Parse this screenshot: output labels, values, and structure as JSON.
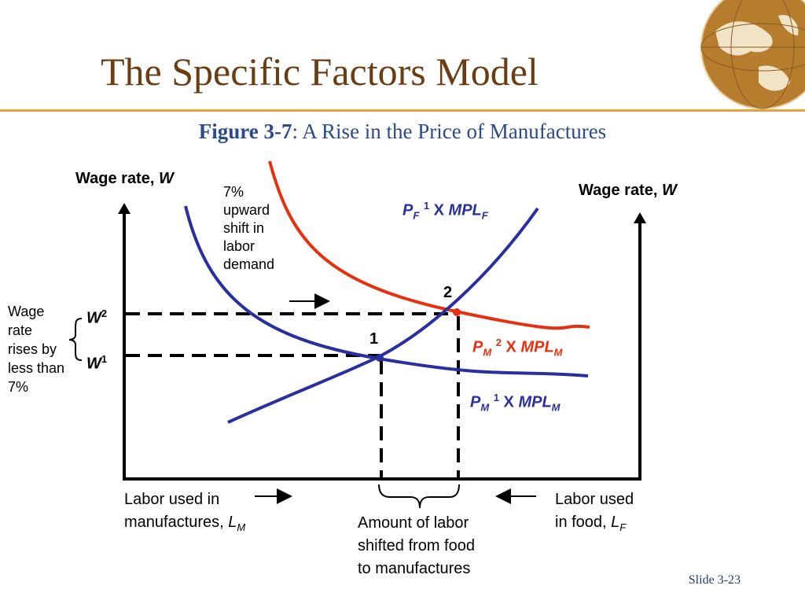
{
  "slide": {
    "title": "The Specific Factors Model",
    "figure_ref": "Figure 3-7",
    "figure_title": ": A Rise in the Price of Manufactures",
    "slide_number": "Slide 3-23"
  },
  "diagram": {
    "left_axis_label": "Wage rate, ",
    "left_axis_var": "W",
    "right_axis_label": "Wage rate, ",
    "right_axis_var": "W",
    "shift_note": [
      "7%",
      "upward",
      "shift in",
      "labor",
      "demand"
    ],
    "wage_note": [
      "Wage",
      "rate",
      "rises by",
      "less than",
      "7%"
    ],
    "w2_label": "W",
    "w2_sup": "2",
    "w1_label": "W",
    "w1_sup": "1",
    "point1": "1",
    "point2": "2",
    "curve_pf": {
      "p": "P",
      "p_sub": "F",
      "sup": "1",
      "x": " X ",
      "mpl": "MPL",
      "mpl_sub": "F",
      "color": "#2a2fa0"
    },
    "curve_pm2": {
      "p": "P",
      "p_sub": "M",
      "sup": "2",
      "x": " X ",
      "mpl": "MPL",
      "mpl_sub": "M",
      "color": "#e83010"
    },
    "curve_pm1": {
      "p": "P",
      "p_sub": "M",
      "sup": "1",
      "x": " X ",
      "mpl": "MPL",
      "mpl_sub": "M",
      "color": "#2a2fa0"
    },
    "labor_m_line1": "Labor used in",
    "labor_m_line2": "manufactures, ",
    "labor_m_var": "L",
    "labor_m_sub": "M",
    "labor_f_line1": "Labor used",
    "labor_f_line2": "in food, ",
    "labor_f_var": "L",
    "labor_f_sub": "F",
    "shifted_note": [
      "Amount of labor",
      "shifted from food",
      "to manufactures"
    ]
  },
  "colors": {
    "title": "#6b3d14",
    "accent_rule": "#e8a23c",
    "subtitle": "#2c4a8a",
    "blue_curve": "#2a2fa0",
    "red_curve": "#e83010"
  }
}
